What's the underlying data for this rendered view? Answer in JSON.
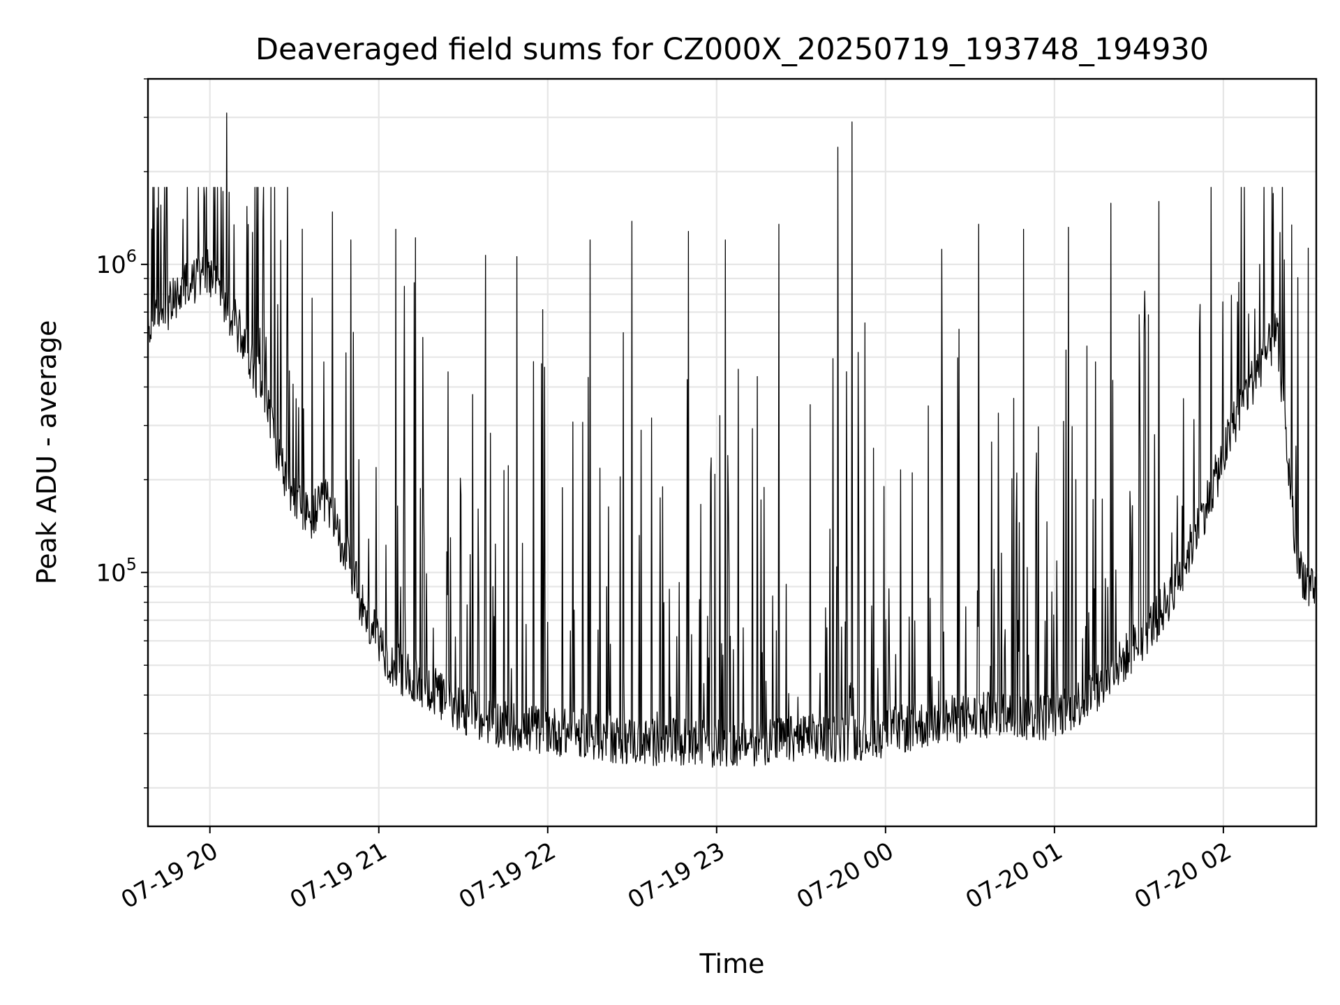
{
  "chart_data": {
    "type": "line",
    "title": "Deaveraged field sums for CZ000X_20250719_193748_194930",
    "xlabel": "Time",
    "ylabel": "Peak ADU - average",
    "yscale": "log",
    "grid": true,
    "x_ticks": [
      {
        "time": "2025-07-19 20:00",
        "label": "07-19 20"
      },
      {
        "time": "2025-07-19 21:00",
        "label": "07-19 21"
      },
      {
        "time": "2025-07-19 22:00",
        "label": "07-19 22"
      },
      {
        "time": "2025-07-19 23:00",
        "label": "07-19 23"
      },
      {
        "time": "2025-07-20 00:00",
        "label": "07-20 00"
      },
      {
        "time": "2025-07-20 01:00",
        "label": "07-20 01"
      },
      {
        "time": "2025-07-20 02:00",
        "label": "07-20 02"
      }
    ],
    "y_ticks": [
      {
        "value": 100000,
        "base": "10",
        "exp": "5"
      },
      {
        "value": 1000000,
        "base": "10",
        "exp": "6"
      }
    ],
    "xlim": [
      "2025-07-19 19:38",
      "2025-07-20 02:33"
    ],
    "ylim": [
      15000,
      4000000
    ],
    "series": [
      {
        "color": "#000000",
        "x": [
          "2025-07-19 19:38",
          "2025-07-19 19:45",
          "2025-07-19 19:52",
          "2025-07-19 20:00",
          "2025-07-19 20:07",
          "2025-07-19 20:14",
          "2025-07-19 20:21",
          "2025-07-19 20:28",
          "2025-07-19 20:35",
          "2025-07-19 20:42",
          "2025-07-19 20:49",
          "2025-07-19 20:56",
          "2025-07-19 21:04",
          "2025-07-19 21:11",
          "2025-07-19 21:18",
          "2025-07-19 21:25",
          "2025-07-19 21:32",
          "2025-07-19 21:39",
          "2025-07-19 21:46",
          "2025-07-19 21:53",
          "2025-07-19 22:00",
          "2025-07-19 22:07",
          "2025-07-19 22:14",
          "2025-07-19 22:21",
          "2025-07-19 22:28",
          "2025-07-19 22:35",
          "2025-07-19 22:42",
          "2025-07-19 22:49",
          "2025-07-19 22:56",
          "2025-07-19 23:03",
          "2025-07-19 23:10",
          "2025-07-19 23:17",
          "2025-07-19 23:24",
          "2025-07-19 23:31",
          "2025-07-19 23:38",
          "2025-07-19 23:45",
          "2025-07-19 23:52",
          "2025-07-19 23:59",
          "2025-07-20 00:06",
          "2025-07-20 00:13",
          "2025-07-20 00:20",
          "2025-07-20 00:27",
          "2025-07-20 00:34",
          "2025-07-20 00:41",
          "2025-07-20 00:48",
          "2025-07-20 00:55",
          "2025-07-20 01:02",
          "2025-07-20 01:09",
          "2025-07-20 01:16",
          "2025-07-20 01:23",
          "2025-07-20 01:30",
          "2025-07-20 01:37",
          "2025-07-20 01:44",
          "2025-07-20 01:51",
          "2025-07-20 01:58",
          "2025-07-20 02:05",
          "2025-07-20 02:12",
          "2025-07-20 02:19",
          "2025-07-20 02:26",
          "2025-07-20 02:33"
        ],
        "y": [
          600000,
          720000,
          850000,
          950000,
          700000,
          520000,
          330000,
          180000,
          150000,
          170000,
          110000,
          70000,
          52000,
          45000,
          42000,
          38000,
          35000,
          33000,
          32000,
          31000,
          31000,
          30000,
          30000,
          29000,
          28500,
          28000,
          28000,
          28000,
          28000,
          28000,
          28000,
          28500,
          28500,
          29000,
          29000,
          29000,
          29500,
          30000,
          31000,
          32000,
          33000,
          33500,
          34000,
          34500,
          34000,
          34000,
          35000,
          38000,
          42000,
          50000,
          60000,
          72000,
          95000,
          140000,
          210000,
          330000,
          450000,
          600000,
          110000,
          80000
        ],
        "spikes": [
          {
            "time": "2025-07-19 19:58",
            "value": 1650000
          },
          {
            "time": "2025-07-19 20:06",
            "value": 3100000
          },
          {
            "time": "2025-07-19 20:50",
            "value": 1200000
          },
          {
            "time": "2025-07-19 21:06",
            "value": 1300000
          },
          {
            "time": "2025-07-19 21:13",
            "value": 1220000
          },
          {
            "time": "2025-07-19 21:38",
            "value": 1070000
          },
          {
            "time": "2025-07-19 21:49",
            "value": 1060000
          },
          {
            "time": "2025-07-19 22:15",
            "value": 1200000
          },
          {
            "time": "2025-07-19 22:30",
            "value": 1380000
          },
          {
            "time": "2025-07-19 22:50",
            "value": 1280000
          },
          {
            "time": "2025-07-19 23:03",
            "value": 1200000
          },
          {
            "time": "2025-07-19 23:22",
            "value": 1350000
          },
          {
            "time": "2025-07-19 23:43",
            "value": 2400000
          },
          {
            "time": "2025-07-19 23:48",
            "value": 2900000
          },
          {
            "time": "2025-07-20 00:20",
            "value": 1120000
          },
          {
            "time": "2025-07-20 00:33",
            "value": 1350000
          },
          {
            "time": "2025-07-20 00:49",
            "value": 1300000
          },
          {
            "time": "2025-07-20 01:05",
            "value": 1320000
          },
          {
            "time": "2025-07-20 01:20",
            "value": 1580000
          },
          {
            "time": "2025-07-20 01:37",
            "value": 1600000
          },
          {
            "time": "2025-07-20 02:13",
            "value": 1000000
          }
        ]
      }
    ]
  }
}
